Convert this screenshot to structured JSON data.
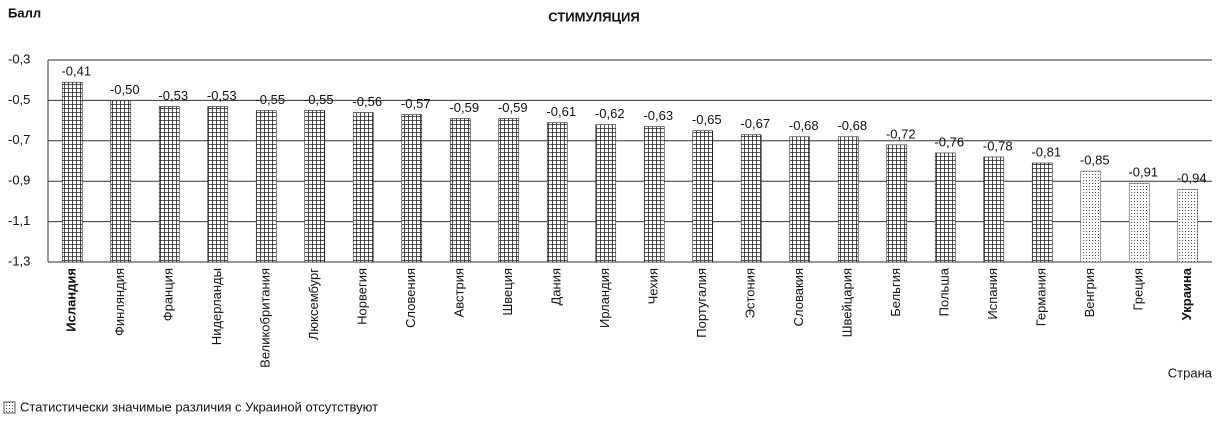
{
  "chart_data": {
    "type": "bar",
    "title": "СТИМУЛЯЦИЯ",
    "y_label": "Балл",
    "x_label": "Страна",
    "categories": [
      "Исландия",
      "Финляндия",
      "Франция",
      "Нидерланды",
      "Великобритания",
      "Люксембург",
      "Норвегия",
      "Словения",
      "Австрия",
      "Швеция",
      "Дания",
      "Ирландия",
      "Чехия",
      "Португалия",
      "Эстония",
      "Словакия",
      "Швейцария",
      "Бельгия",
      "Польша",
      "Испания",
      "Германия",
      "Венгрия",
      "Греция",
      "Украина"
    ],
    "series": [
      {
        "pattern": "grid",
        "color": "#222222",
        "values": [
          -0.41,
          -0.5,
          -0.53,
          -0.53,
          -0.55,
          -0.55,
          -0.56,
          -0.57,
          -0.59,
          -0.59,
          -0.61,
          -0.62,
          -0.63,
          -0.65,
          -0.67,
          -0.68,
          -0.68,
          -0.72,
          -0.76,
          -0.78,
          -0.81,
          null,
          null,
          null
        ],
        "value_labels": [
          "-0,41",
          "-0,50",
          "-0,53",
          "-0,53",
          "-0,55",
          "-0,55",
          "-0,56",
          "-0,57",
          "-0,59",
          "-0,59",
          "-0,61",
          "-0,62",
          "-0,63",
          "-0,65",
          "-0,67",
          "-0,68",
          "-0,68",
          "-0,72",
          "-0,76",
          "-0,78",
          "-0,81",
          null,
          null,
          null
        ]
      },
      {
        "name": "Статистически значимые различия с Украиной отсутствуют",
        "pattern": "dots",
        "color": "#555555",
        "values": [
          null,
          null,
          null,
          null,
          null,
          null,
          null,
          null,
          null,
          null,
          null,
          null,
          null,
          null,
          null,
          null,
          null,
          null,
          null,
          null,
          null,
          -0.85,
          -0.91,
          -0.94
        ],
        "value_labels": [
          null,
          null,
          null,
          null,
          null,
          null,
          null,
          null,
          null,
          null,
          null,
          null,
          null,
          null,
          null,
          null,
          null,
          null,
          null,
          null,
          null,
          "-0,85",
          "-0,91",
          "-0,94"
        ]
      }
    ],
    "ylim": [
      -1.3,
      -0.3
    ],
    "yticks": [
      {
        "value": -0.3,
        "label": "-0,3"
      },
      {
        "value": -0.5,
        "label": "-0,5"
      },
      {
        "value": -0.7,
        "label": "-0,7"
      },
      {
        "value": -0.9,
        "label": "-0,9"
      },
      {
        "value": -1.1,
        "label": "-1,1"
      },
      {
        "value": -1.3,
        "label": "-1,3"
      }
    ],
    "grid": true
  }
}
